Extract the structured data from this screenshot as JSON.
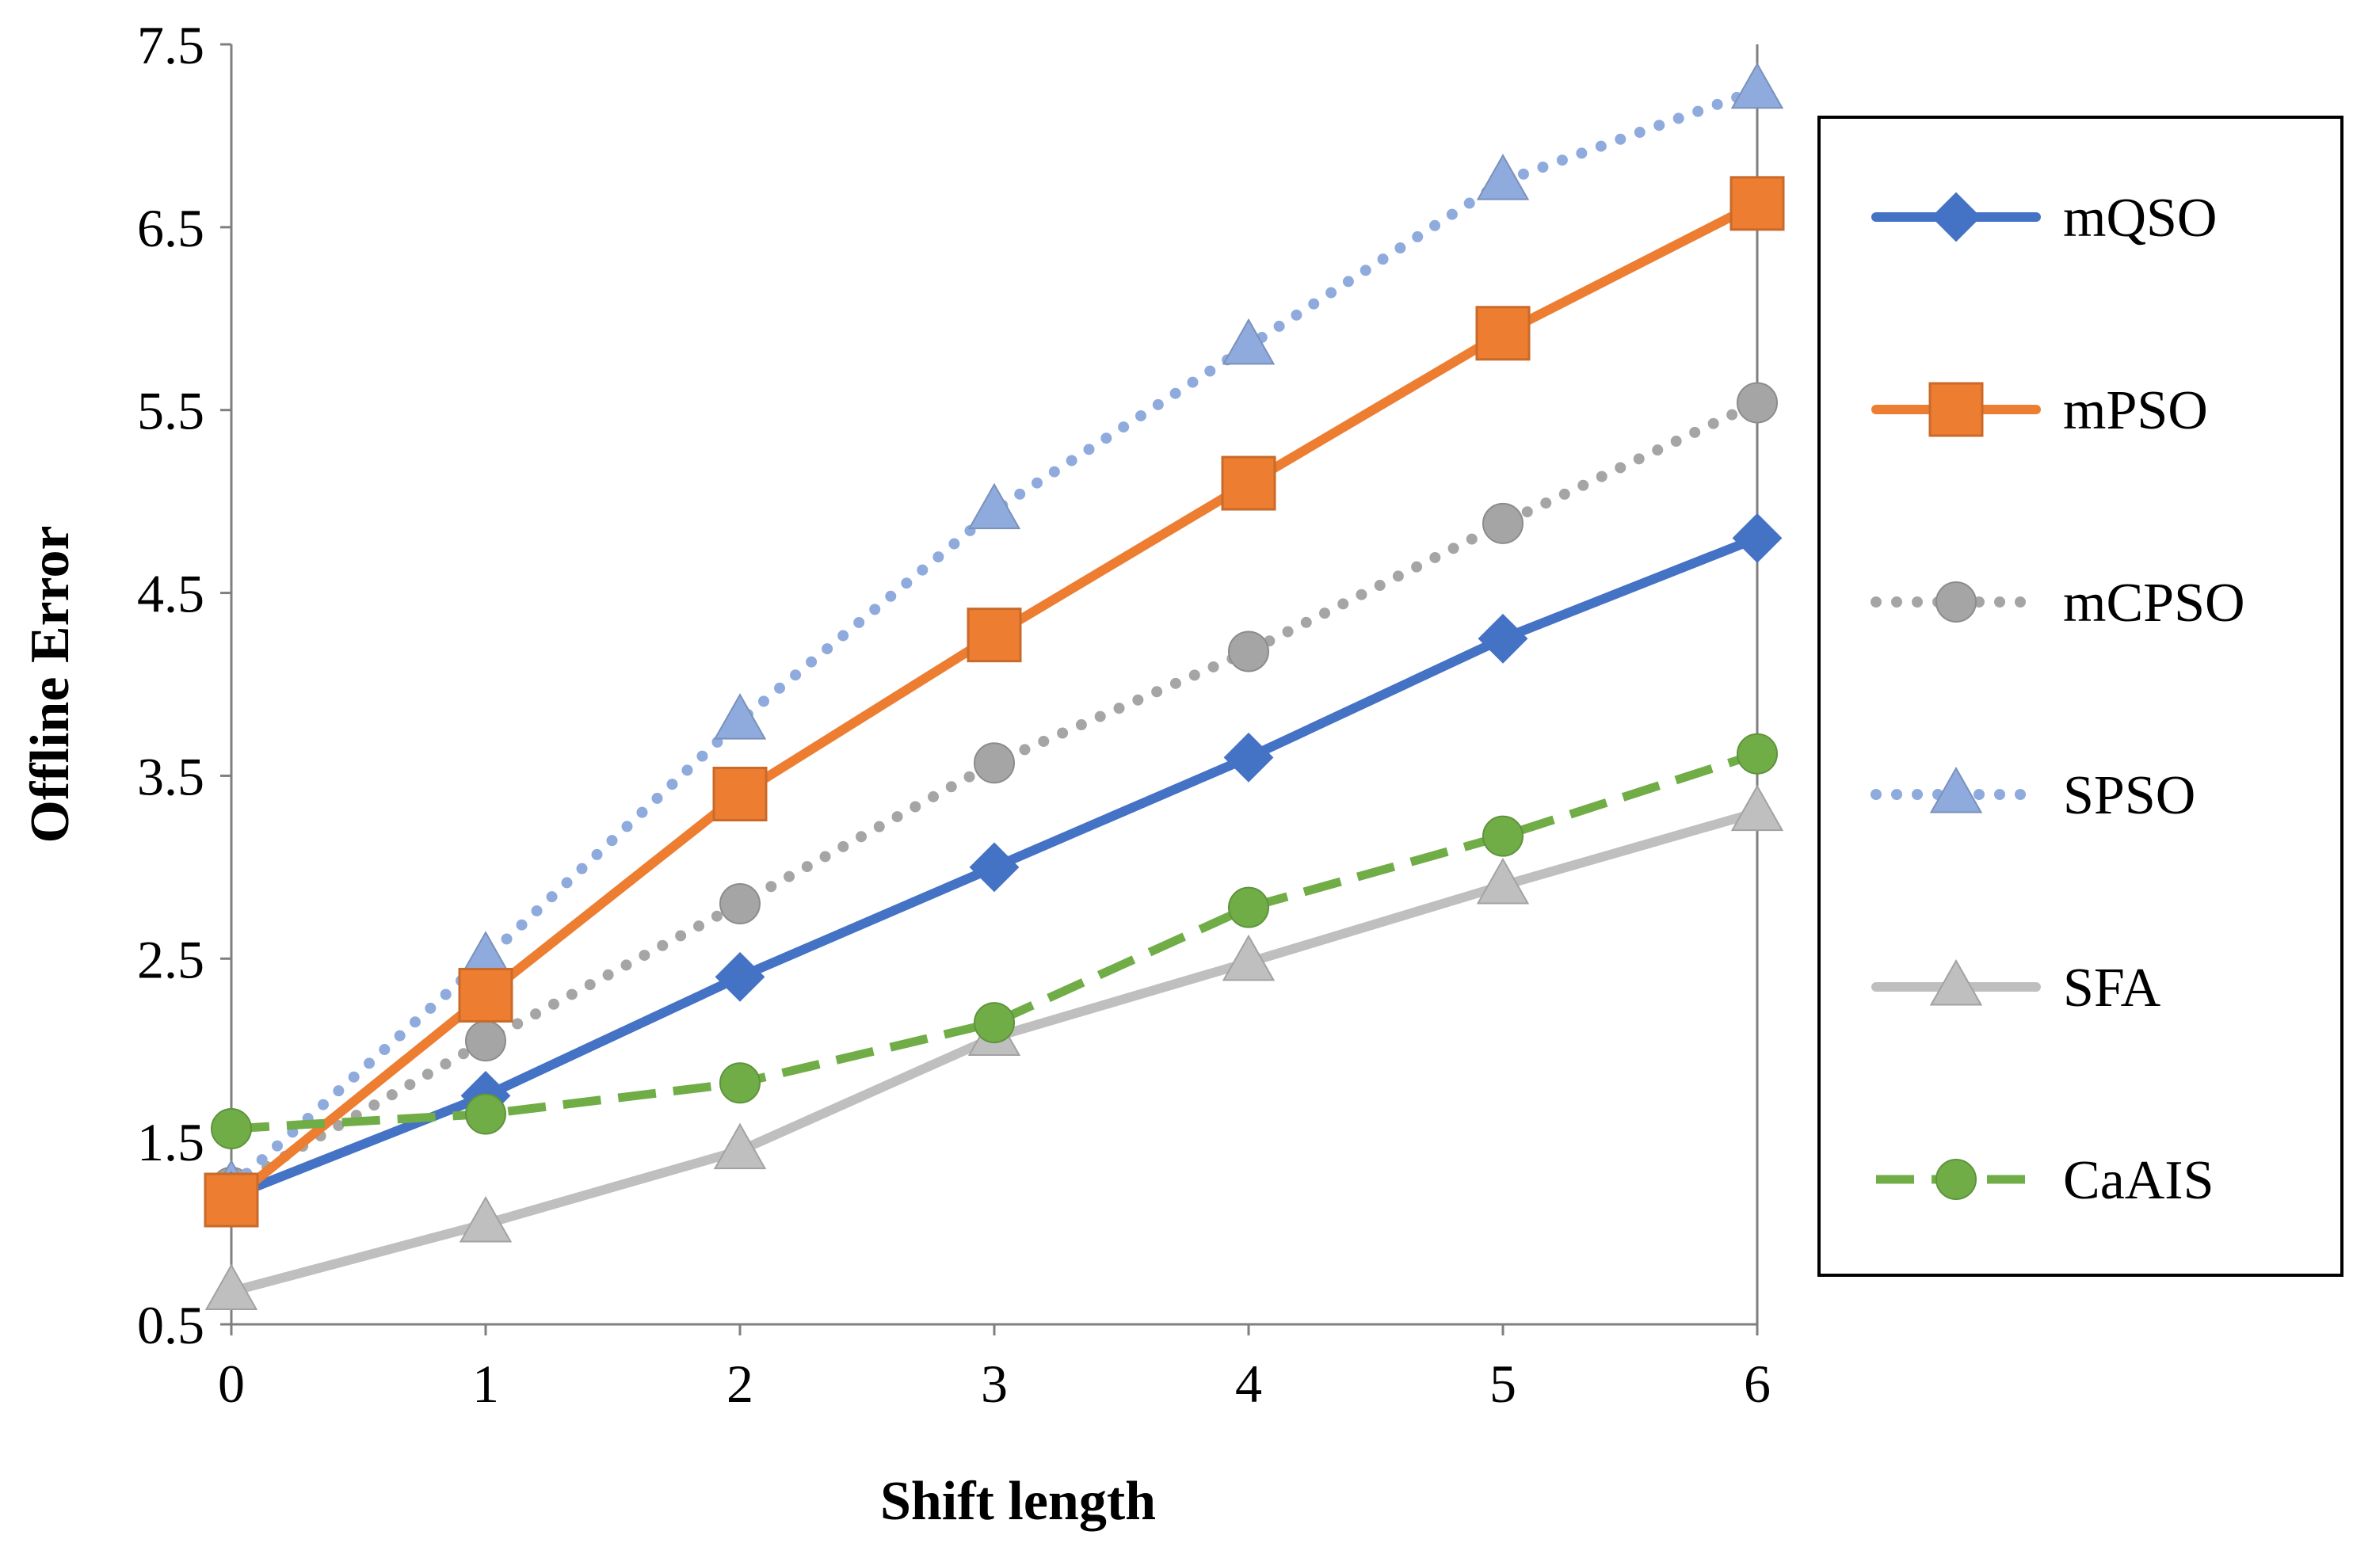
{
  "chart_data": {
    "type": "line",
    "title": "",
    "xlabel": "Shift length",
    "ylabel": "Offline Error",
    "x": [
      0,
      1,
      2,
      3,
      4,
      5,
      6
    ],
    "x_tick_labels": [
      "0",
      "1",
      "2",
      "3",
      "4",
      "5",
      "6"
    ],
    "y_tick_labels": [
      "0.5",
      "1.5",
      "2.5",
      "3.5",
      "4.5",
      "5.5",
      "6.5",
      "7.5"
    ],
    "y_ticks": [
      0.5,
      1.5,
      2.5,
      3.5,
      4.5,
      5.5,
      6.5,
      7.5
    ],
    "ylim": [
      0.5,
      7.5
    ],
    "xlim": [
      0,
      6
    ],
    "grid": false,
    "legend_position": "right",
    "series": [
      {
        "name": "mQSO",
        "values": [
          1.2,
          1.75,
          2.4,
          3.0,
          3.6,
          4.25,
          4.8
        ],
        "color": "#4472C4",
        "marker": "diamond",
        "dash": "solid"
      },
      {
        "name": "mPSO",
        "values": [
          1.18,
          2.3,
          3.4,
          4.27,
          5.1,
          5.92,
          6.63
        ],
        "color": "#ED7D31",
        "marker": "square",
        "dash": "solid"
      },
      {
        "name": "mCPSO",
        "values": [
          1.25,
          2.05,
          2.8,
          3.57,
          4.18,
          4.88,
          5.54
        ],
        "color": "#A5A5A5",
        "marker": "circle",
        "dash": "dot"
      },
      {
        "name": "SPSO",
        "values": [
          1.25,
          2.5,
          3.8,
          4.95,
          5.85,
          6.75,
          7.25
        ],
        "color": "#8FAADC",
        "marker": "triangle",
        "dash": "dot"
      },
      {
        "name": "SFA",
        "values": [
          0.68,
          1.05,
          1.45,
          2.07,
          2.48,
          2.9,
          3.3
        ],
        "color": "#BFBFBF",
        "marker": "triangle",
        "dash": "solid"
      },
      {
        "name": "CaAIS",
        "values": [
          1.57,
          1.65,
          1.82,
          2.15,
          2.78,
          3.17,
          3.62
        ],
        "color": "#70AD47",
        "marker": "circle",
        "dash": "dash"
      }
    ]
  }
}
